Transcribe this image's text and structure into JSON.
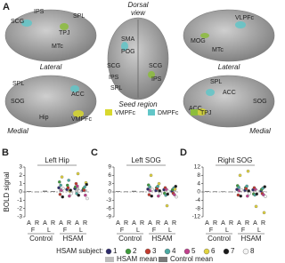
{
  "panel_a": {
    "letter": "A",
    "dorsal_view": [
      "Dorsal",
      "view"
    ],
    "views": [
      "Lateral",
      "Lateral",
      "Medial",
      "Medial"
    ],
    "regions": [
      "SCG",
      "IPS",
      "SPL",
      "TPJ",
      "MTc",
      "SMA",
      "POG",
      "SCG",
      "SCG",
      "IPS",
      "IPS",
      "SPL",
      "VLPFc",
      "MOG",
      "MTc",
      "SPL",
      "ACC",
      "SOG",
      "Hip",
      "VMPFc",
      "SPL",
      "ACC",
      "ACC",
      "SOG"
    ],
    "seed_title": "Seed region",
    "seeds": [
      {
        "name": "VMPFc",
        "color": "#d8d82e"
      },
      {
        "name": "DMPFc",
        "color": "#62c6c8"
      },
      {
        "name": "TPJ",
        "color": "#8cbd3c"
      }
    ]
  },
  "chart_data": [
    {
      "type": "dotbar",
      "letter": "B",
      "title": "Left Hip",
      "y_label": "BOLD signal",
      "categories": [
        "A",
        "R",
        "A",
        "R",
        "A",
        "R",
        "A",
        "R"
      ],
      "subgroups": [
        "F",
        "L",
        "F",
        "L"
      ],
      "groups": [
        "Control",
        "HSAM"
      ],
      "ylim": [
        -3,
        3
      ],
      "yticks": [
        -3,
        -2,
        -1,
        0,
        1,
        2,
        3
      ],
      "control_mean": [
        0.1,
        0.05,
        0.15,
        0.1,
        null,
        null,
        null,
        null
      ],
      "hsam_mean": [
        null,
        null,
        null,
        null,
        0.5,
        0.3,
        0.55,
        0.3
      ],
      "subjects": [
        [
          null,
          null,
          null,
          null,
          0.5,
          0.3,
          0.4,
          0.2
        ],
        [
          null,
          null,
          null,
          null,
          1.2,
          0.8,
          0.6,
          0.4
        ],
        [
          null,
          null,
          null,
          null,
          -0.3,
          0.5,
          1.0,
          0.2
        ],
        [
          null,
          null,
          null,
          null,
          0.8,
          1.4,
          -0.2,
          0.6
        ],
        [
          null,
          null,
          null,
          null,
          0.2,
          -0.5,
          0.7,
          -0.4
        ],
        [
          null,
          null,
          null,
          null,
          1.8,
          0.1,
          2.2,
          1.1
        ],
        [
          null,
          null,
          null,
          null,
          -0.6,
          0.2,
          -0.4,
          0.9
        ],
        [
          null,
          null,
          null,
          null,
          0.4,
          -0.2,
          0.1,
          -0.8
        ]
      ]
    },
    {
      "type": "dotbar",
      "letter": "C",
      "title": "Left SOG",
      "categories": [
        "A",
        "R",
        "A",
        "R",
        "A",
        "R",
        "A",
        "R"
      ],
      "subgroups": [
        "F",
        "L",
        "F",
        "L"
      ],
      "groups": [
        "Control",
        "HSAM"
      ],
      "ylim": [
        -9,
        9
      ],
      "yticks": [
        -9,
        -6,
        -3,
        0,
        3,
        6,
        9
      ],
      "control_mean": [
        0.3,
        0.2,
        0.4,
        0.2,
        null,
        null,
        null,
        null
      ],
      "hsam_mean": [
        null,
        null,
        null,
        null,
        1.2,
        0.8,
        0.3,
        0.5
      ],
      "subjects": [
        [
          null,
          null,
          null,
          null,
          1.0,
          0.5,
          0.8,
          0.3
        ],
        [
          null,
          null,
          null,
          null,
          2.5,
          1.5,
          -0.5,
          0.8
        ],
        [
          null,
          null,
          null,
          null,
          -1.0,
          1.2,
          1.5,
          -0.5
        ],
        [
          null,
          null,
          null,
          null,
          1.8,
          2.0,
          -1.2,
          1.4
        ],
        [
          null,
          null,
          null,
          null,
          0.5,
          -1.5,
          0.9,
          -1.0
        ],
        [
          null,
          null,
          null,
          null,
          6.0,
          3.0,
          -5.0,
          1.0
        ],
        [
          null,
          null,
          null,
          null,
          -1.5,
          0.4,
          -0.8,
          2.0
        ],
        [
          null,
          null,
          null,
          null,
          0.9,
          -0.6,
          0.2,
          -1.8
        ]
      ]
    },
    {
      "type": "dotbar",
      "letter": "D",
      "title": "Right SOG",
      "categories": [
        "A",
        "R",
        "A",
        "R",
        "A",
        "R",
        "A",
        "R"
      ],
      "subgroups": [
        "F",
        "L",
        "F",
        "L"
      ],
      "groups": [
        "Control",
        "HSAM"
      ],
      "ylim": [
        -12,
        12
      ],
      "yticks": [
        -12,
        -8,
        -4,
        0,
        4,
        8,
        12
      ],
      "control_mean": [
        0.4,
        0.3,
        0.3,
        0.2,
        null,
        null,
        null,
        null
      ],
      "hsam_mean": [
        null,
        null,
        null,
        null,
        1.5,
        1.0,
        0.6,
        0.4
      ],
      "subjects": [
        [
          null,
          null,
          null,
          null,
          1.2,
          0.8,
          1.0,
          0.5
        ],
        [
          null,
          null,
          null,
          null,
          3.0,
          2.0,
          -1.0,
          1.2
        ],
        [
          null,
          null,
          null,
          null,
          -1.5,
          1.6,
          2.0,
          -0.8
        ],
        [
          null,
          null,
          null,
          null,
          2.2,
          2.8,
          -1.5,
          1.8
        ],
        [
          null,
          null,
          null,
          null,
          0.6,
          -2.0,
          1.2,
          -1.4
        ],
        [
          null,
          null,
          null,
          null,
          8.0,
          10.0,
          -7.0,
          -10.0
        ],
        [
          null,
          null,
          null,
          null,
          -2.0,
          0.5,
          -1.0,
          2.5
        ],
        [
          null,
          null,
          null,
          null,
          1.0,
          -0.8,
          0.3,
          -2.2
        ]
      ]
    }
  ],
  "legend": {
    "title": "HSAM subject:",
    "subjects": [
      "1",
      "2",
      "3",
      "4",
      "5",
      "6",
      "7",
      "8"
    ],
    "subject_colors": [
      "#2e2c6c",
      "#3d9a3a",
      "#c23a2e",
      "#4aa9a2",
      "#c0408c",
      "#e2d43e",
      "#1a1a1a",
      "#f4f4f4"
    ],
    "hsam_mean": "HSAM mean",
    "control_mean": "Control mean",
    "hsam_mean_color": "#bdbdbd",
    "control_mean_color": "#7a7a7a"
  }
}
